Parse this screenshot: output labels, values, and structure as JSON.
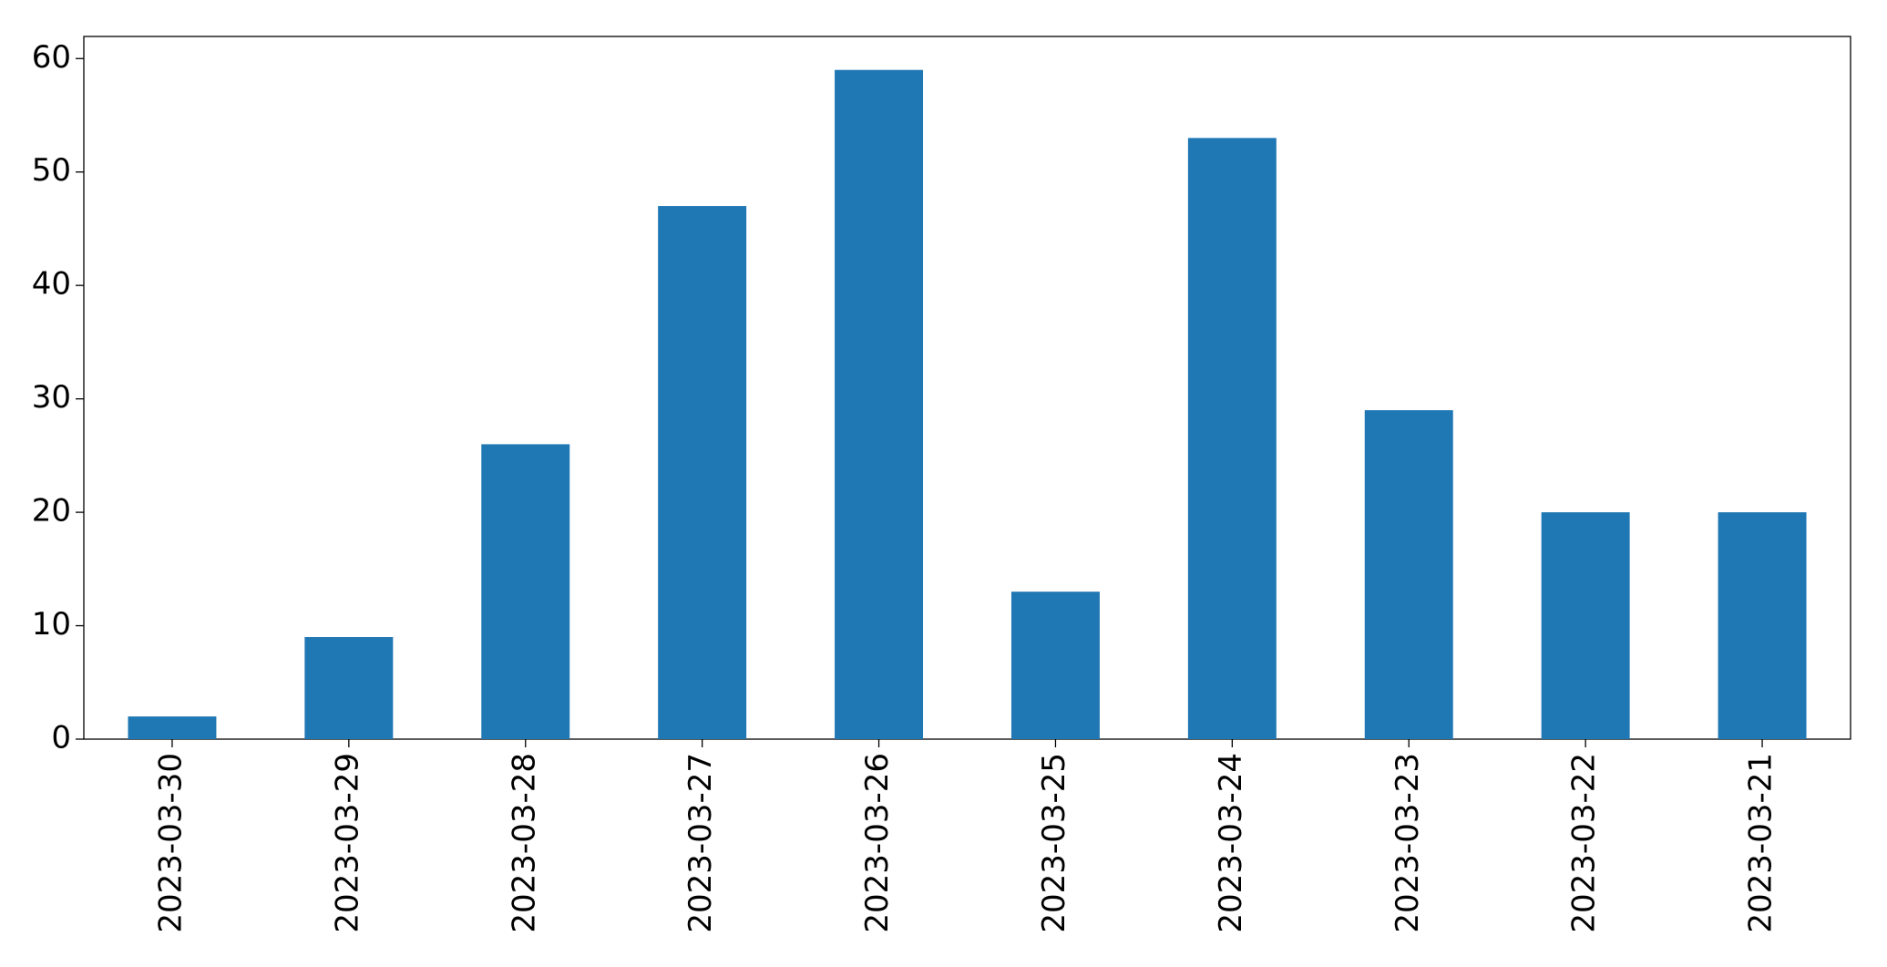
{
  "chart_data": {
    "type": "bar",
    "categories": [
      "2023-03-30",
      "2023-03-29",
      "2023-03-28",
      "2023-03-27",
      "2023-03-26",
      "2023-03-25",
      "2023-03-24",
      "2023-03-23",
      "2023-03-22",
      "2023-03-21"
    ],
    "values": [
      2,
      9,
      26,
      47,
      59,
      13,
      53,
      29,
      20,
      20
    ],
    "color": "#1f77b4",
    "ylim": [
      0,
      61.95
    ],
    "yticks": [
      0,
      10,
      20,
      30,
      40,
      50,
      60
    ],
    "grid": false
  }
}
